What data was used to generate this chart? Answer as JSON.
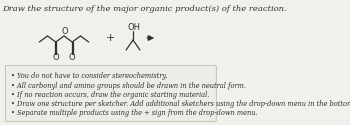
{
  "title": "Draw the structure of the major organic product(s) of the reaction.",
  "bg_color": "#f2f0ec",
  "box_bg": "#eeece8",
  "box_border": "#bbbbaa",
  "bullet_points": [
    "You do not have to consider stereochemistry.",
    "All carbonyl and amino groups should be drawn in the neutral form.",
    "If no reaction occurs, draw the organic starting material.",
    "Draw one structure per sketcher. Add additional sketchers using the drop-down menu in the bottom right corner.",
    "Separate multiple products using the + sign from the drop-down menu."
  ],
  "text_color": "#333322",
  "bullet_fontsize": 4.8,
  "title_fontsize": 6.0,
  "lw": 0.9
}
